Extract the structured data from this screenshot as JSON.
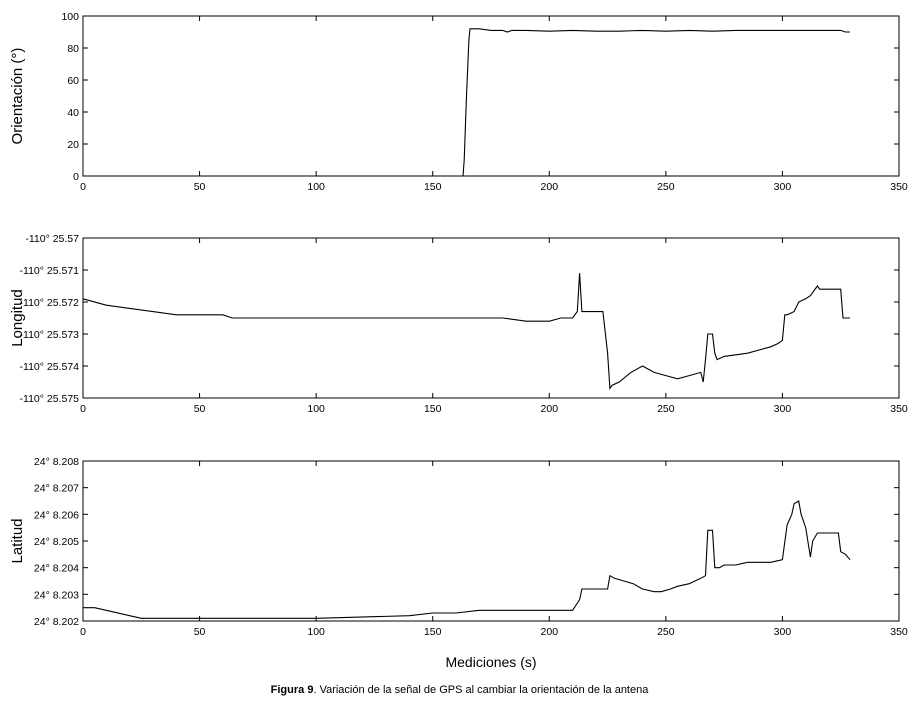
{
  "caption": {
    "label": "Figura 9",
    "text": ". Variación de la señal de GPS al cambiar la orientación de la antena"
  },
  "chart_data": [
    {
      "type": "line",
      "ylabel": "Orientación (°)",
      "xlabel": "",
      "xlim": [
        0,
        350
      ],
      "ylim": [
        0,
        100
      ],
      "x_ticks": [
        0,
        50,
        100,
        150,
        200,
        250,
        300,
        350
      ],
      "y_ticks": [
        0,
        20,
        40,
        60,
        80,
        100
      ],
      "y_tick_labels": [
        "0",
        "20",
        "40",
        "60",
        "80",
        "100"
      ],
      "series": [
        {
          "color": "#000000",
          "x": [
            0,
            163,
            163.5,
            164.5,
            165.5,
            166,
            170,
            175,
            180,
            182,
            184,
            190,
            200,
            210,
            220,
            230,
            240,
            250,
            260,
            270,
            280,
            290,
            300,
            310,
            320,
            325,
            327,
            329
          ],
          "y": [
            0,
            0,
            10,
            50,
            85,
            92,
            92,
            91,
            91,
            90,
            91,
            91,
            90.5,
            91,
            90.5,
            90.5,
            91,
            90.5,
            91,
            90.5,
            91,
            91,
            91,
            91,
            91,
            91,
            90,
            90
          ]
        }
      ]
    },
    {
      "type": "line",
      "ylabel": "Longitud",
      "xlabel": "",
      "xlim": [
        0,
        350
      ],
      "ylim": [
        -25.575,
        -25.57
      ],
      "x_ticks": [
        0,
        50,
        100,
        150,
        200,
        250,
        300,
        350
      ],
      "y_ticks": [
        -25.575,
        -25.574,
        -25.573,
        -25.572,
        -25.571,
        -25.57
      ],
      "y_tick_labels": [
        "-110° 25.575",
        "-110° 25.574",
        "-110° 25.573",
        "-110° 25.572",
        "-110° 25.571",
        "-110° 25.57"
      ],
      "series": [
        {
          "color": "#000000",
          "x": [
            0,
            10,
            20,
            30,
            40,
            50,
            60,
            64,
            70,
            80,
            90,
            100,
            110,
            120,
            130,
            150,
            160,
            170,
            180,
            190,
            200,
            205,
            210,
            212,
            213,
            214,
            215,
            223,
            225,
            226,
            227,
            230,
            235,
            240,
            245,
            250,
            255,
            260,
            265,
            266,
            267,
            268,
            270,
            271,
            272,
            275,
            285,
            290,
            295,
            298,
            300,
            301,
            302,
            305,
            307,
            310,
            312,
            315,
            316,
            318,
            320,
            325,
            326,
            327,
            329
          ],
          "y": [
            -25.5719,
            -25.5721,
            -25.5722,
            -25.5723,
            -25.5724,
            -25.5724,
            -25.5724,
            -25.5725,
            -25.5725,
            -25.5725,
            -25.5725,
            -25.5725,
            -25.5725,
            -25.5725,
            -25.5725,
            -25.5725,
            -25.5725,
            -25.5725,
            -25.5725,
            -25.5726,
            -25.5726,
            -25.5725,
            -25.5725,
            -25.5723,
            -25.5711,
            -25.5723,
            -25.5723,
            -25.5723,
            -25.5736,
            -25.5747,
            -25.5746,
            -25.5745,
            -25.5742,
            -25.574,
            -25.5742,
            -25.5743,
            -25.5744,
            -25.5743,
            -25.5742,
            -25.5745,
            -25.5738,
            -25.573,
            -25.573,
            -25.5736,
            -25.5738,
            -25.5737,
            -25.5736,
            -25.5735,
            -25.5734,
            -25.5733,
            -25.5732,
            -25.5724,
            -25.5724,
            -25.5723,
            -25.572,
            -25.5719,
            -25.5718,
            -25.5715,
            -25.5716,
            -25.5716,
            -25.5716,
            -25.5716,
            -25.5725,
            -25.5725,
            -25.5725
          ]
        }
      ]
    },
    {
      "type": "line",
      "ylabel": "Latitud",
      "xlabel": "Mediciones (s)",
      "xlim": [
        0,
        350
      ],
      "ylim": [
        8.202,
        8.208
      ],
      "x_ticks": [
        0,
        50,
        100,
        150,
        200,
        250,
        300,
        350
      ],
      "y_ticks": [
        8.202,
        8.203,
        8.204,
        8.205,
        8.206,
        8.207,
        8.208
      ],
      "y_tick_labels": [
        "24° 8.202",
        "24° 8.203",
        "24° 8.204",
        "24° 8.205",
        "24° 8.206",
        "24° 8.207",
        "24° 8.208"
      ],
      "series": [
        {
          "color": "#000000",
          "x": [
            0,
            5,
            10,
            20,
            25,
            50,
            100,
            140,
            150,
            160,
            170,
            180,
            190,
            200,
            210,
            213,
            214,
            220,
            225,
            226,
            228,
            232,
            236,
            240,
            245,
            248,
            252,
            255,
            260,
            265,
            267,
            268,
            270,
            271,
            273,
            275,
            280,
            285,
            290,
            295,
            300,
            302,
            304,
            305,
            307,
            308,
            310,
            312,
            313,
            315,
            318,
            320,
            322,
            324,
            325,
            327,
            329
          ],
          "y": [
            8.2025,
            8.2025,
            8.2024,
            8.2022,
            8.2021,
            8.2021,
            8.2021,
            8.2022,
            8.2023,
            8.2023,
            8.2024,
            8.2024,
            8.2024,
            8.2024,
            8.2024,
            8.2028,
            8.2032,
            8.2032,
            8.2032,
            8.2037,
            8.2036,
            8.2035,
            8.2034,
            8.2032,
            8.2031,
            8.2031,
            8.2032,
            8.2033,
            8.2034,
            8.2036,
            8.2037,
            8.2054,
            8.2054,
            8.204,
            8.204,
            8.2041,
            8.2041,
            8.2042,
            8.2042,
            8.2042,
            8.2043,
            8.2056,
            8.206,
            8.2064,
            8.2065,
            8.206,
            8.2055,
            8.2044,
            8.205,
            8.2053,
            8.2053,
            8.2053,
            8.2053,
            8.2053,
            8.2046,
            8.2045,
            8.2043
          ]
        }
      ]
    }
  ]
}
